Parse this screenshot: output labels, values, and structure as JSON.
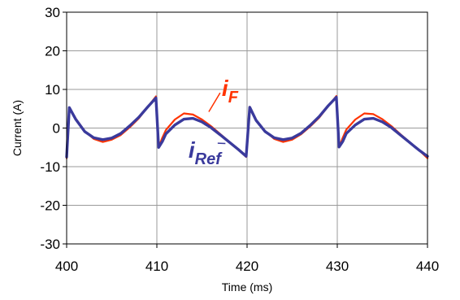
{
  "chart_data": {
    "type": "line",
    "xlabel": "Time (ms)",
    "ylabel": "Current (A)",
    "xlim": [
      400,
      440
    ],
    "ylim": [
      -30,
      30
    ],
    "x_ticks": [
      400,
      410,
      420,
      430,
      440
    ],
    "y_ticks": [
      -30,
      -20,
      -10,
      0,
      10,
      20,
      30
    ],
    "x_tick_labels": [
      "400",
      "410",
      "420",
      "430",
      "440"
    ],
    "y_tick_labels": [
      "-30",
      "-20",
      "-10",
      "0",
      "10",
      "20",
      "30"
    ],
    "grid": true,
    "series": [
      {
        "id": "iF",
        "label_main": "i",
        "label_sub": "F",
        "color": "#ff3300",
        "x": [
          400,
          400.3,
          401,
          402,
          403,
          404,
          405,
          406,
          407,
          408,
          409,
          409.9,
          410.2,
          410.6,
          411,
          412,
          413,
          414,
          415,
          416,
          417,
          418,
          419,
          419.9,
          420.3,
          421,
          422,
          423,
          424,
          425,
          426,
          427,
          428,
          429,
          429.9,
          430.2,
          430.6,
          431,
          432,
          433,
          434,
          435,
          436,
          437,
          438,
          439,
          440
        ],
        "y": [
          -7.8,
          5.2,
          2.5,
          -0.8,
          -2.8,
          -3.6,
          -3.0,
          -1.8,
          0.2,
          2.5,
          5.5,
          8.2,
          -5.0,
          -2.5,
          -0.5,
          2.2,
          3.8,
          3.5,
          2.2,
          0.5,
          -1.5,
          -3.5,
          -5.5,
          -7.5,
          5.5,
          2.0,
          -0.8,
          -2.8,
          -3.6,
          -3.0,
          -1.6,
          0.4,
          2.7,
          5.7,
          8.3,
          -5.0,
          -2.5,
          -0.4,
          2.2,
          3.8,
          3.6,
          2.3,
          0.5,
          -1.6,
          -3.6,
          -5.6,
          -7.8
        ]
      },
      {
        "id": "iRef",
        "label_main": "i",
        "label_sub": "Ref",
        "color": "#3a3a9c",
        "x": [
          400,
          400.3,
          401,
          402,
          403,
          404,
          405,
          406,
          407,
          408,
          409,
          409.9,
          410.2,
          410.6,
          411,
          412,
          413,
          414,
          415,
          416,
          417,
          418,
          419,
          419.9,
          420.3,
          421,
          422,
          423,
          424,
          425,
          426,
          427,
          428,
          429,
          429.9,
          430.2,
          430.6,
          431,
          432,
          433,
          434,
          435,
          436,
          437,
          438,
          439,
          440
        ],
        "y": [
          -7.5,
          5.3,
          2.3,
          -0.9,
          -2.5,
          -3.0,
          -2.6,
          -1.4,
          0.6,
          2.8,
          5.5,
          7.8,
          -5.0,
          -3.5,
          -1.5,
          0.8,
          2.3,
          2.5,
          1.6,
          0.1,
          -1.7,
          -3.6,
          -5.5,
          -7.3,
          5.4,
          2.0,
          -0.9,
          -2.5,
          -3.0,
          -2.6,
          -1.3,
          0.7,
          3.0,
          5.8,
          8.0,
          -4.9,
          -3.5,
          -1.4,
          0.8,
          2.3,
          2.5,
          1.6,
          0.1,
          -1.8,
          -3.7,
          -5.6,
          -7.3
        ]
      }
    ],
    "annotations": {
      "iF": {
        "x": 417.2,
        "y": 8.3
      },
      "iRef": {
        "x": 413.5,
        "y": -7.7
      }
    }
  }
}
